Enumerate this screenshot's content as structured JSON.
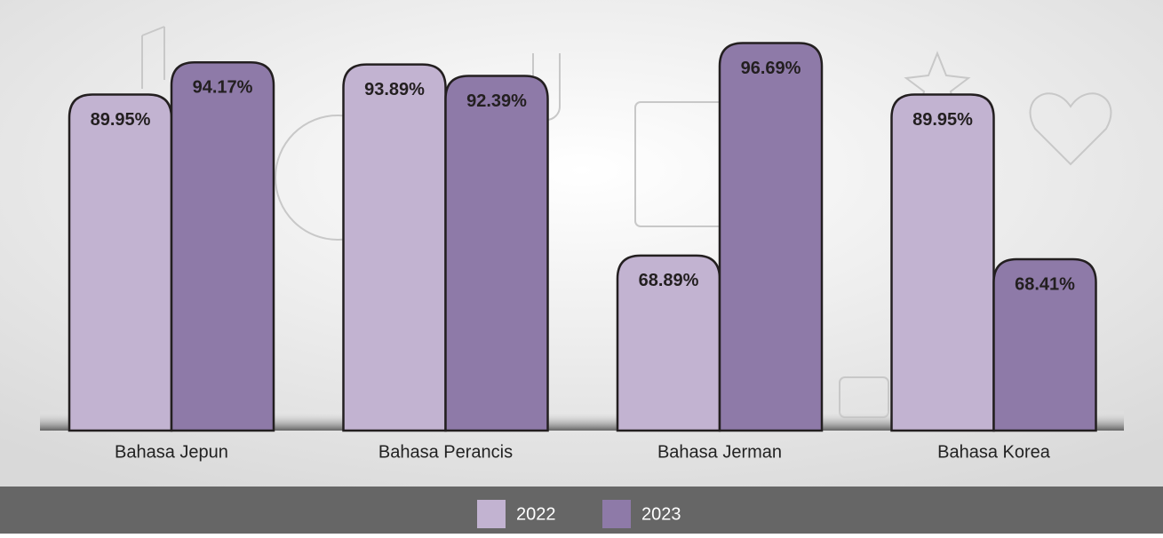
{
  "chart_data": {
    "type": "bar",
    "categories": [
      "Bahasa Jepun",
      "Bahasa Perancis",
      "Bahasa Jerman",
      "Bahasa Korea"
    ],
    "series": [
      {
        "name": "2022",
        "color": "#c2b3d1",
        "values": [
          89.95,
          93.89,
          68.89,
          89.95
        ],
        "value_labels": [
          "89.95%",
          "93.89%",
          "68.89%",
          "89.95%"
        ]
      },
      {
        "name": "2023",
        "color": "#8e7aa8",
        "values": [
          94.17,
          92.39,
          96.69,
          68.41
        ],
        "value_labels": [
          "94.17%",
          "92.39%",
          "96.69%",
          "68.41%"
        ]
      }
    ],
    "ylim": [
      46,
      100
    ]
  }
}
